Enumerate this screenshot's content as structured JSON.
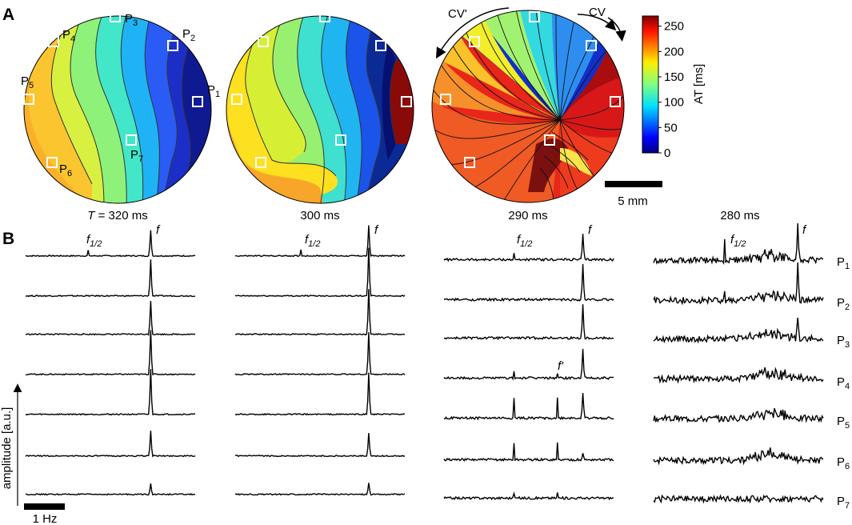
{
  "panel_a": {
    "letter": "A",
    "maps": [
      {
        "caption_prefix": "T",
        "caption_value": "= 320 ms"
      },
      {
        "caption_prefix": "",
        "caption_value": "300 ms"
      },
      {
        "caption_prefix": "",
        "caption_value": "290 ms"
      }
    ],
    "point_labels": [
      "P",
      "P",
      "P",
      "P",
      "P",
      "P",
      "P"
    ],
    "point_subs": [
      "1",
      "2",
      "3",
      "4",
      "5",
      "6",
      "7"
    ],
    "cv_label": "CV",
    "cv_prime_label": "CV'",
    "colorbar": {
      "label": "AT [ms]",
      "ticks": [
        "0",
        "50",
        "100",
        "150",
        "200",
        "250"
      ],
      "min": 0,
      "max": 270
    },
    "scalebar_label": "5 mm"
  },
  "panel_b": {
    "letter": "B",
    "column_captions": [
      "",
      "",
      "",
      "280 ms"
    ],
    "peak_f": "f",
    "peak_half_main": "f",
    "peak_half_sub": "1/2",
    "peak_f_prime": "f'",
    "row_labels_main": [
      "P",
      "P",
      "P",
      "P",
      "P",
      "P",
      "P"
    ],
    "row_labels_sub": [
      "1",
      "2",
      "3",
      "4",
      "5",
      "6",
      "7"
    ],
    "ylabel": "amplitude [a.u.]",
    "scalebar_label": "1 Hz"
  },
  "chart_data": {
    "type": "line",
    "description_units": "spectra amplitude (a.u.) vs frequency; peak heights as fraction of tallest peak",
    "columns": [
      {
        "period": "320 ms",
        "peaks": [
          {
            "row": "P1",
            "f_half": 0.1,
            "f": 0.45
          },
          {
            "row": "P2",
            "f_half": 0.0,
            "f": 0.65
          },
          {
            "row": "P3",
            "f_half": 0.0,
            "f": 0.6
          },
          {
            "row": "P4",
            "f_half": 0.0,
            "f": 0.8
          },
          {
            "row": "P5",
            "f_half": 0.0,
            "f": 0.8
          },
          {
            "row": "P6",
            "f_half": 0.0,
            "f": 0.45
          },
          {
            "row": "P7",
            "f_half": 0.0,
            "f": 0.2
          }
        ]
      },
      {
        "period": "300 ms",
        "peaks": [
          {
            "row": "P1",
            "f_half": 0.12,
            "f": 0.55
          },
          {
            "row": "P2",
            "f_half": 0.0,
            "f": 0.85
          },
          {
            "row": "P3",
            "f_half": 0.0,
            "f": 0.8
          },
          {
            "row": "P4",
            "f_half": 0.0,
            "f": 0.75
          },
          {
            "row": "P5",
            "f_half": 0.0,
            "f": 0.75
          },
          {
            "row": "P6",
            "f_half": 0.0,
            "f": 0.4
          },
          {
            "row": "P7",
            "f_half": 0.0,
            "f": 0.2
          }
        ]
      },
      {
        "period": "290 ms",
        "peaks": [
          {
            "row": "P1",
            "f_half": 0.1,
            "f": 0.45
          },
          {
            "row": "P2",
            "f_half": 0.0,
            "f": 0.65
          },
          {
            "row": "P3",
            "f_half": 0.0,
            "f": 0.6
          },
          {
            "row": "P4",
            "f_half": 0.1,
            "f": 0.5
          },
          {
            "row": "P5",
            "f_half": 0.35,
            "f": 0.45
          },
          {
            "row": "P6",
            "f_half": 0.3,
            "f": 0.1
          },
          {
            "row": "P7",
            "f_half": 0.1,
            "f": 0.0
          }
        ]
      },
      {
        "period": "280 ms",
        "peaks": [
          {
            "row": "P1",
            "f_half": 0.4,
            "f": 0.6
          },
          {
            "row": "P2",
            "f_half": 0.2,
            "f": 0.65
          },
          {
            "row": "P3",
            "f_half": 0.0,
            "f": 0.35
          },
          {
            "row": "P4",
            "f_half": 0.0,
            "f": 0.0
          },
          {
            "row": "P5",
            "f_half": 0.0,
            "f": 0.0
          },
          {
            "row": "P6",
            "f_half": 0.0,
            "f": 0.0
          },
          {
            "row": "P7",
            "f_half": 0.0,
            "f": 0.0
          }
        ]
      }
    ],
    "noise_levels": [
      0.03,
      0.03,
      0.06,
      0.16
    ],
    "colorbar_range": [
      0,
      270
    ]
  }
}
